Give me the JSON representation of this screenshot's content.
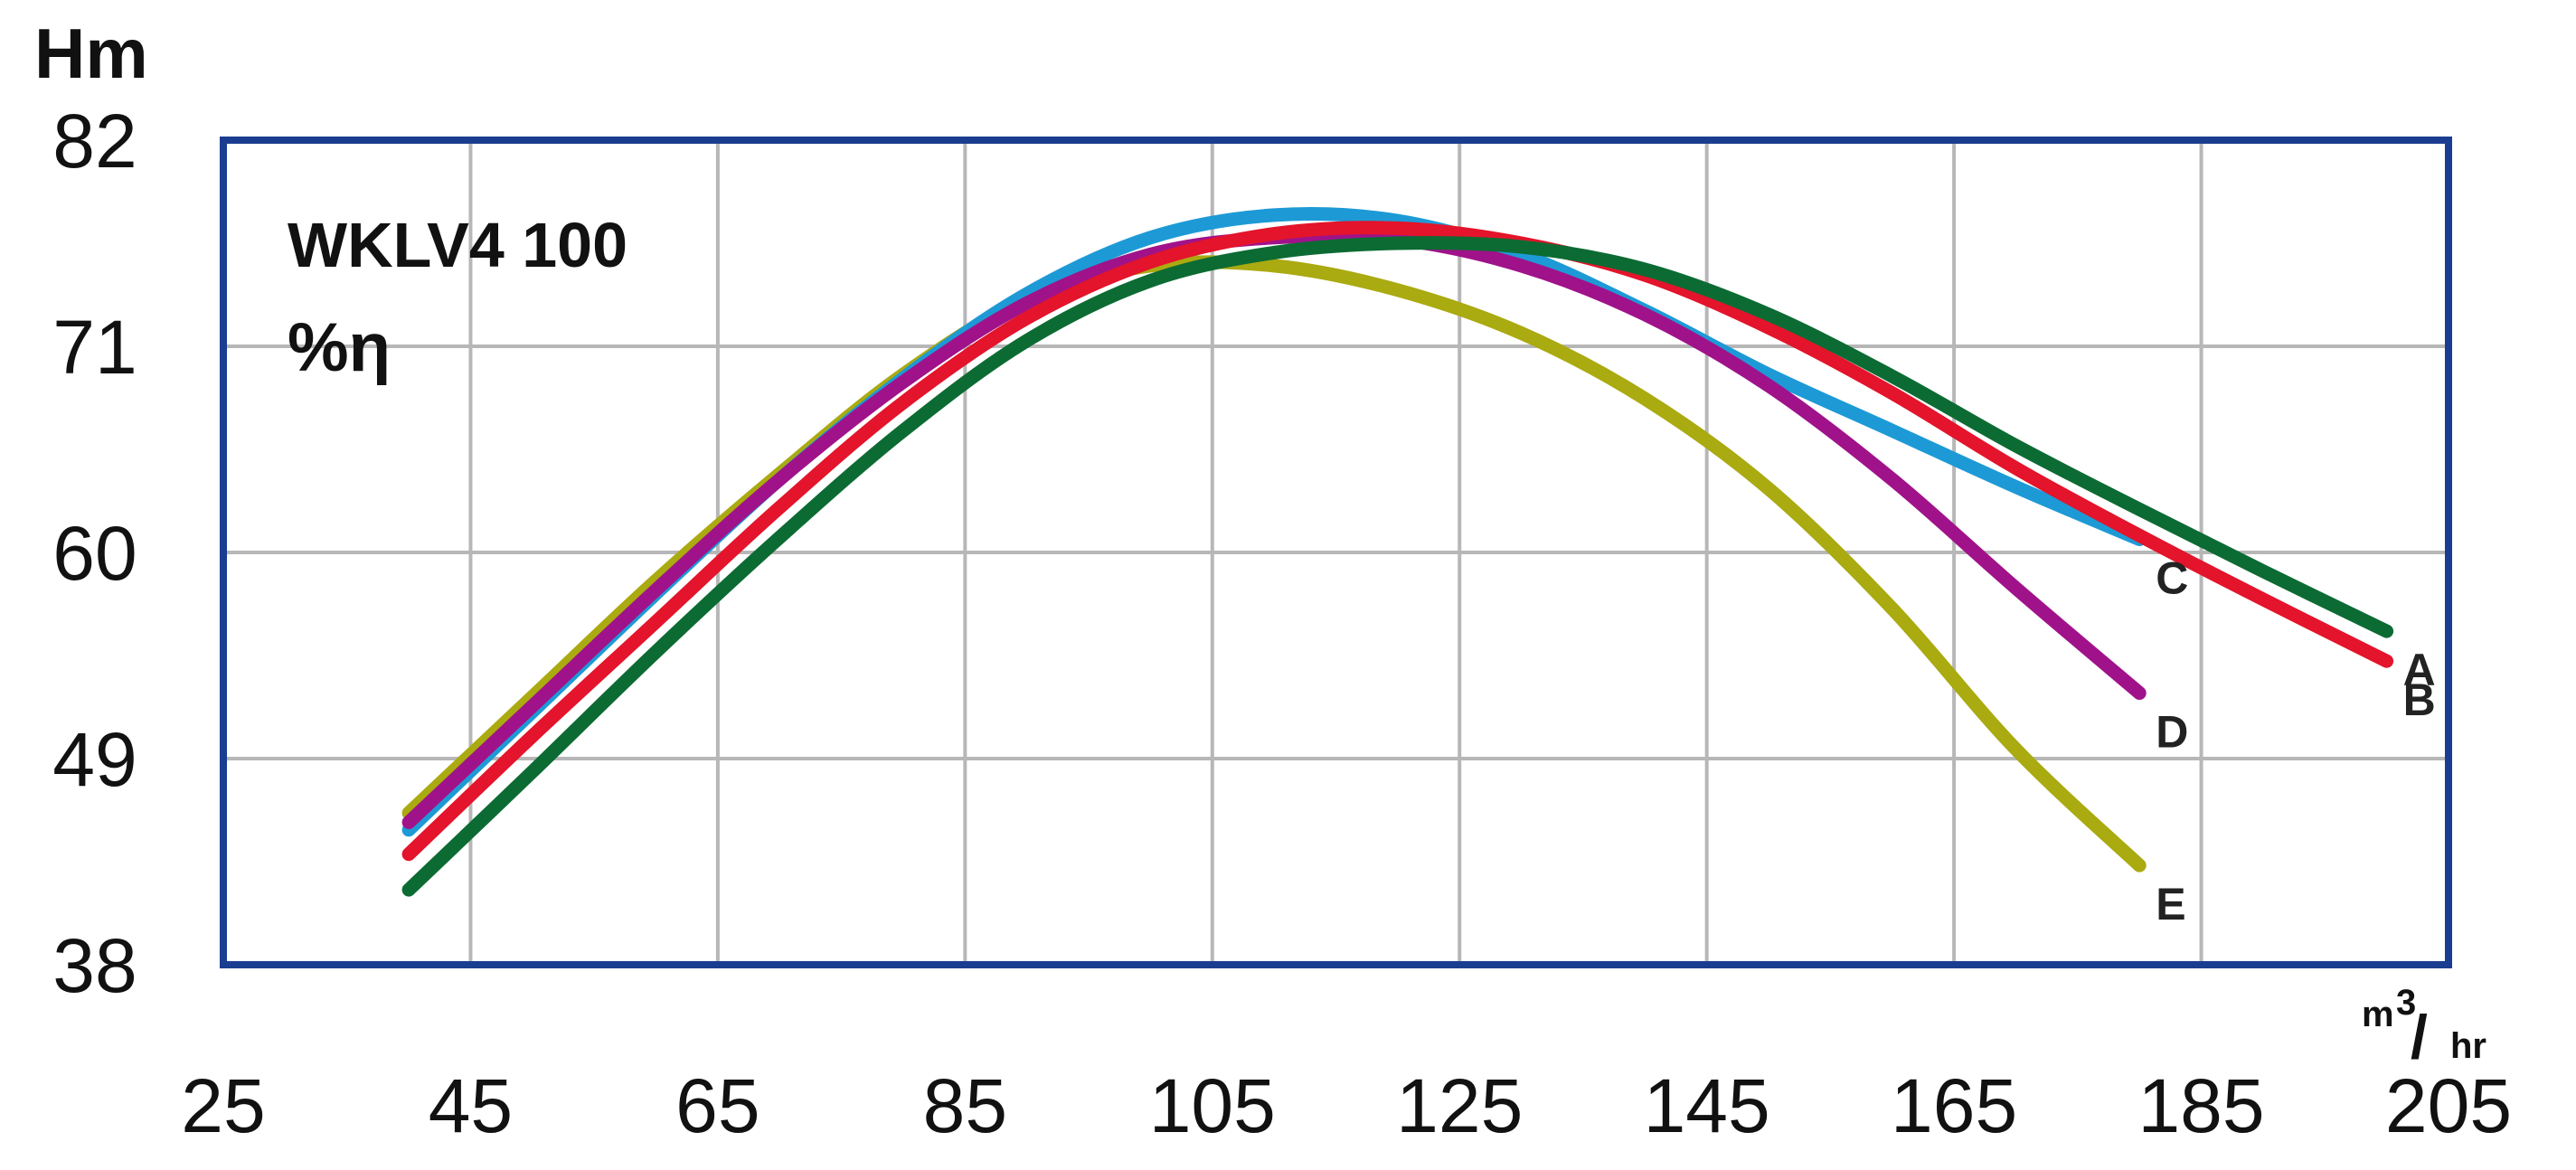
{
  "chart_data": {
    "type": "line",
    "title": "WKLV4  100",
    "subtitle": "%η",
    "ylabel": "Hm",
    "xlabel_parts": {
      "main": "m",
      "sup": "3",
      "slash": "/",
      "sub": "hr"
    },
    "xlim": [
      25,
      205
    ],
    "ylim": [
      38,
      82
    ],
    "x_ticks": [
      "25",
      "45",
      "65",
      "85",
      "105",
      "125",
      "145",
      "165",
      "185",
      "205"
    ],
    "y_ticks": [
      "38",
      "49",
      "60",
      "71",
      "82"
    ],
    "x_tick_values": [
      25,
      45,
      65,
      85,
      105,
      125,
      145,
      165,
      185,
      205
    ],
    "y_tick_values": [
      38,
      49,
      60,
      71,
      82
    ],
    "grid": true,
    "frame_color": "#1a3d8f",
    "grid_color": "#b7b7b7",
    "series": [
      {
        "name": "E",
        "color": "#aaaa11",
        "x": [
          40,
          50,
          60,
          70,
          80,
          90,
          100,
          110,
          120,
          130,
          140,
          150,
          160,
          170,
          180
        ],
        "y": [
          46.1,
          52.3,
          58.5,
          64.2,
          69.5,
          73.5,
          75.3,
          75.3,
          74.0,
          71.7,
          68.2,
          63.4,
          57.0,
          49.5,
          43.3
        ]
      },
      {
        "name": "C",
        "color": "#1d9ad6",
        "x": [
          40,
          50,
          60,
          70,
          80,
          90,
          100,
          110,
          120,
          130,
          140,
          150,
          160,
          170,
          180
        ],
        "y": [
          45.2,
          51.5,
          57.8,
          63.9,
          69.3,
          73.8,
          76.8,
          78.0,
          77.7,
          75.9,
          72.9,
          69.5,
          66.5,
          63.5,
          60.7
        ]
      },
      {
        "name": "D",
        "color": "#a0128a",
        "x": [
          40,
          50,
          60,
          70,
          80,
          90,
          100,
          110,
          120,
          130,
          140,
          150,
          160,
          170,
          180
        ],
        "y": [
          45.6,
          51.8,
          58.0,
          63.9,
          69.1,
          73.3,
          75.9,
          76.8,
          76.7,
          75.3,
          72.7,
          68.9,
          63.9,
          58.1,
          52.5
        ]
      },
      {
        "name": "B",
        "color": "#e3142b",
        "x": [
          40,
          50,
          60,
          70,
          80,
          90,
          100,
          110,
          120,
          130,
          140,
          150,
          160,
          170,
          180,
          190,
          200
        ],
        "y": [
          43.9,
          50.2,
          56.3,
          62.4,
          68.0,
          72.5,
          75.5,
          77.0,
          77.3,
          76.5,
          74.8,
          72.0,
          68.5,
          64.5,
          60.9,
          57.5,
          54.2
        ]
      },
      {
        "name": "A",
        "color": "#0c6b33",
        "x": [
          40,
          50,
          60,
          70,
          80,
          90,
          100,
          110,
          120,
          130,
          140,
          150,
          160,
          170,
          180,
          190,
          200
        ],
        "y": [
          42.0,
          48.3,
          54.7,
          60.8,
          66.5,
          71.3,
          74.5,
          76.0,
          76.5,
          76.3,
          75.1,
          72.7,
          69.4,
          65.7,
          62.3,
          59.0,
          55.8
        ]
      }
    ]
  }
}
